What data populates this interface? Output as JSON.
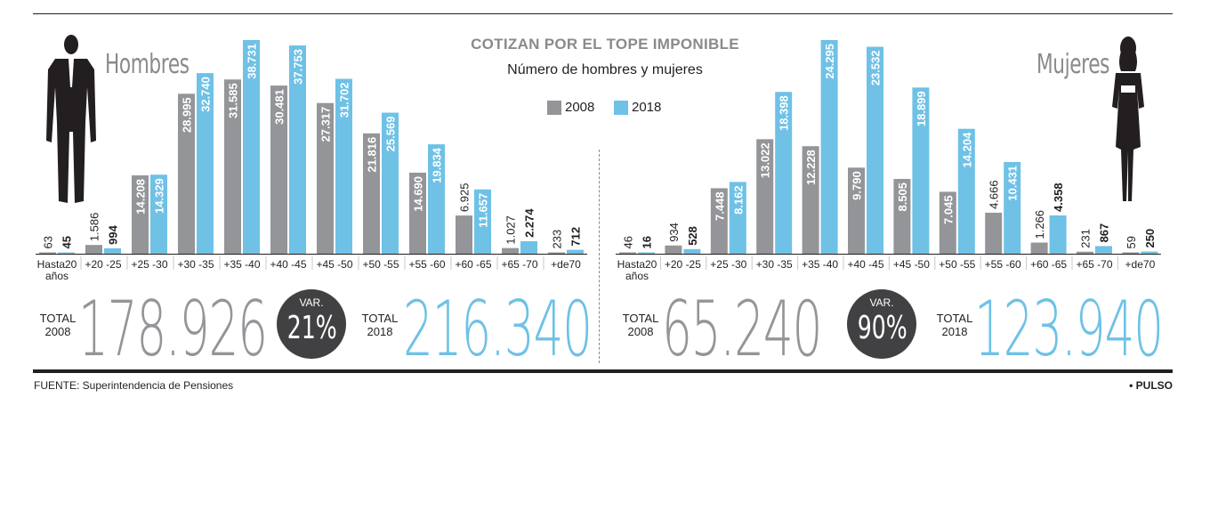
{
  "header": {
    "title": "COTIZAN POR EL  TOPE IMPONIBLE",
    "subtitle": "Número de hombres y mujeres"
  },
  "legend": [
    {
      "label": "2008",
      "color": "#939598"
    },
    {
      "label": "2018",
      "color": "#6fc1e6"
    }
  ],
  "panels": {
    "men": {
      "label": "Hombres"
    },
    "women": {
      "label": "Mujeres"
    }
  },
  "chart_data": [
    {
      "type": "bar",
      "title": "Hombres",
      "categories": [
        "Hasta20 años",
        "+20 -25",
        "+25 -30",
        "+30 -35",
        "+35 -40",
        "+40 -45",
        "+45 -50",
        "+50 -55",
        "+55 -60",
        "+60 -65",
        "+65 -70",
        "+de70"
      ],
      "series": [
        {
          "name": "2008",
          "values": [
            63,
            1586,
            14208,
            28995,
            31585,
            30481,
            27317,
            21816,
            14690,
            6925,
            1027,
            233
          ],
          "labels": [
            "63",
            "1.586",
            "14.208",
            "28.995",
            "31.585",
            "30.481",
            "27.317",
            "21.816",
            "14.690",
            "6.925",
            "1.027",
            "233"
          ]
        },
        {
          "name": "2018",
          "values": [
            45,
            994,
            14329,
            32740,
            38731,
            37753,
            31702,
            25569,
            19834,
            11657,
            2274,
            712
          ],
          "labels": [
            "45",
            "994",
            "14.329",
            "32.740",
            "38.731",
            "37.753",
            "31.702",
            "25.569",
            "19.834",
            "11.657",
            "2.274",
            "712"
          ]
        }
      ],
      "colors": [
        "#939598",
        "#6fc1e6"
      ],
      "ylim": [
        0,
        38731
      ]
    },
    {
      "type": "bar",
      "title": "Mujeres",
      "categories": [
        "Hasta20 años",
        "+20 -25",
        "+25 -30",
        "+30 -35",
        "+35 -40",
        "+40 -45",
        "+45 -50",
        "+50 -55",
        "+55 -60",
        "+60 -65",
        "+65 -70",
        "+de70"
      ],
      "series": [
        {
          "name": "2008",
          "values": [
            46,
            934,
            7448,
            13022,
            12228,
            9790,
            8505,
            7045,
            4666,
            1266,
            231,
            59
          ],
          "labels": [
            "46",
            "934",
            "7.448",
            "13.022",
            "12.228",
            "9.790",
            "8.505",
            "7.045",
            "4.666",
            "1.266",
            "231",
            "59"
          ]
        },
        {
          "name": "2018",
          "values": [
            16,
            528,
            8162,
            18398,
            24295,
            23532,
            18899,
            14204,
            10431,
            4358,
            867,
            250
          ],
          "labels": [
            "16",
            "528",
            "8.162",
            "18.398",
            "24.295",
            "23.532",
            "18.899",
            "14.204",
            "10.431",
            "4.358",
            "867",
            "250"
          ]
        }
      ],
      "colors": [
        "#939598",
        "#6fc1e6"
      ],
      "ylim": [
        0,
        24295
      ]
    }
  ],
  "totals": {
    "men": {
      "label_2008": "TOTAL\n2008",
      "value_2008": "178.926",
      "var_label": "VAR.",
      "var_value": "21%",
      "label_2018": "TOTAL\n2018",
      "value_2018": "216.340"
    },
    "women": {
      "label_2008": "TOTAL\n2008",
      "value_2008": "65.240",
      "var_label": "VAR.",
      "var_value": "90%",
      "label_2018": "TOTAL\n2018",
      "value_2018": "123.940"
    }
  },
  "footer": {
    "source": "FUENTE: Superintendencia de Pensiones",
    "brand": "• PULSO"
  }
}
